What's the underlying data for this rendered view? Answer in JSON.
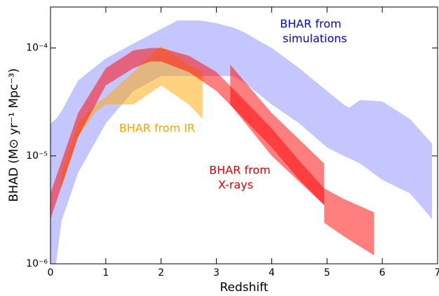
{
  "chart_data": {
    "type": "band",
    "xlabel": "Redshift",
    "ylabel": "BHAD (M⊙ yr⁻¹ Mpc⁻³)",
    "xlim": [
      0,
      7
    ],
    "xticks": [
      0,
      1,
      2,
      3,
      4,
      5,
      6,
      7
    ],
    "ylim": [
      1e-06,
      0.00024
    ],
    "yscale": "log",
    "yticks": [
      {
        "value": 1e-06,
        "label": "10⁻⁶"
      },
      {
        "value": 1e-05,
        "label": "10⁻⁵"
      },
      {
        "value": 0.0001,
        "label": "10⁻⁴"
      }
    ],
    "series": [
      {
        "color": "#8080ff",
        "x": [
          0,
          0.1,
          0.2,
          0.5,
          1,
          1.5,
          2,
          2.3,
          2.7,
          3,
          3.3,
          3.5,
          4,
          4.5,
          5,
          5.3,
          5.4,
          5.6,
          6,
          6.5,
          6.9
        ],
        "lower": [
          1e-06,
          1e-06,
          2.5e-06,
          7e-06,
          2e-05,
          4e-05,
          5.5e-05,
          5.5e-05,
          5.5e-05,
          5.5e-05,
          5.5e-05,
          4.8e-05,
          3e-05,
          2e-05,
          1.2e-05,
          1e-05,
          9.5e-06,
          8.5e-06,
          6e-06,
          4.5e-06,
          2.6e-06
        ],
        "upper": [
          2e-05,
          2.2e-05,
          2.6e-05,
          5e-05,
          8e-05,
          0.00011,
          0.00015,
          0.00018,
          0.00018,
          0.00017,
          0.000155,
          0.00014,
          0.0001,
          6.5e-05,
          4e-05,
          3e-05,
          2.8e-05,
          3.3e-05,
          3.2e-05,
          2.2e-05,
          1.3e-05
        ]
      },
      {
        "color": "#ffa500",
        "x": [
          0.2,
          0.5,
          0.8,
          1,
          1.5,
          2,
          2.5,
          2.75
        ],
        "lower": [
          5e-06,
          1.5e-05,
          2.5e-05,
          3e-05,
          3e-05,
          4.5e-05,
          3e-05,
          2.2e-05
        ],
        "upper": [
          7e-06,
          2e-05,
          3e-05,
          3.5e-05,
          6e-05,
          0.000105,
          7e-05,
          6e-05
        ]
      },
      {
        "color": "#ff0000",
        "x": [
          0,
          0.5,
          1,
          1.5,
          1.8,
          2,
          2.5,
          3,
          3.5,
          4,
          4.5,
          4.95
        ],
        "lower": [
          2.6e-06,
          1.5e-05,
          4.5e-05,
          6.5e-05,
          7.5e-05,
          7.5e-05,
          6e-05,
          4e-05,
          2.2e-05,
          1.2e-05,
          6e-06,
          3.5e-06
        ],
        "upper": [
          4.5e-06,
          2.5e-05,
          6.5e-05,
          9.5e-05,
          0.0001,
          0.0001,
          8.5e-05,
          6e-05,
          3.3e-05,
          1.8e-05,
          9e-06,
          5e-06
        ]
      },
      {
        "color": "#ff0000",
        "x": [
          3.25,
          4,
          4.95,
          4.95,
          5.3,
          5.85
        ],
        "lower": [
          3e-05,
          1e-05,
          3.5e-06,
          2.4e-06,
          1.8e-06,
          1.2e-06
        ],
        "upper": [
          7e-05,
          2.5e-05,
          8.5e-06,
          5e-06,
          4e-06,
          3e-06
        ]
      }
    ],
    "annotations": [
      {
        "text": [
          "BHAR from",
          "simulations"
        ],
        "color": "#0000e0"
      },
      {
        "text": [
          "BHAR from IR"
        ],
        "color": "#ffa500"
      },
      {
        "text": [
          "BHAR from",
          "X-rays"
        ],
        "color": "#e00000"
      }
    ]
  }
}
